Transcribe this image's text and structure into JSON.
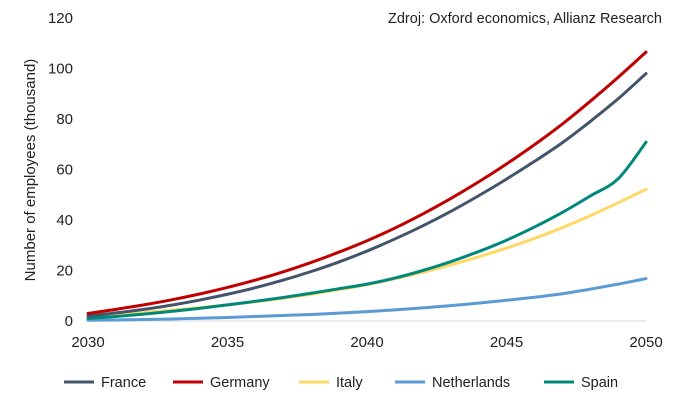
{
  "source_note": "Zdroj: Oxford economics, Allianz Research",
  "chart_data": {
    "type": "line",
    "title": "",
    "xlabel": "",
    "ylabel": "Number of employees (thousand)",
    "xlim": [
      2030,
      2050
    ],
    "ylim": [
      0,
      120
    ],
    "xticks": [
      2030,
      2035,
      2040,
      2045,
      2050
    ],
    "yticks": [
      0,
      20,
      40,
      60,
      80,
      100,
      120
    ],
    "grid": false,
    "legend_position": "bottom",
    "x": [
      2030,
      2031,
      2032,
      2033,
      2034,
      2035,
      2036,
      2037,
      2038,
      2039,
      2040,
      2041,
      2042,
      2043,
      2044,
      2045,
      2046,
      2047,
      2048,
      2049,
      2050
    ],
    "series": [
      {
        "name": "France",
        "color": "#44546A",
        "values": [
          2.0,
          3.2,
          4.6,
          6.3,
          8.3,
          10.6,
          13.2,
          16.2,
          19.6,
          23.4,
          27.7,
          32.5,
          37.7,
          43.4,
          49.6,
          56.2,
          63.2,
          70.6,
          79.0,
          88.0,
          98.0
        ]
      },
      {
        "name": "Germany",
        "color": "#C00000",
        "values": [
          3.0,
          4.6,
          6.4,
          8.4,
          10.7,
          13.3,
          16.2,
          19.5,
          23.2,
          27.3,
          31.8,
          36.8,
          42.4,
          48.5,
          55.1,
          62.2,
          69.8,
          78.0,
          87.0,
          96.5,
          106.5
        ]
      },
      {
        "name": "Italy",
        "color": "#FFD966",
        "values": [
          1.5,
          2.4,
          3.3,
          4.3,
          5.3,
          6.4,
          7.6,
          9.0,
          10.6,
          12.4,
          14.4,
          16.7,
          19.3,
          22.2,
          25.4,
          28.9,
          32.7,
          37.0,
          41.7,
          46.8,
          52.2
        ]
      },
      {
        "name": "Netherlands",
        "color": "#5B9BD5",
        "values": [
          0.3,
          0.4,
          0.6,
          0.8,
          1.1,
          1.4,
          1.8,
          2.2,
          2.6,
          3.1,
          3.7,
          4.4,
          5.2,
          6.1,
          7.1,
          8.2,
          9.4,
          10.8,
          12.6,
          14.6,
          16.8
        ]
      },
      {
        "name": "Spain",
        "color": "#00897B",
        "values": [
          1.0,
          1.8,
          2.7,
          3.8,
          5.0,
          6.4,
          7.8,
          9.3,
          11.0,
          12.8,
          14.6,
          17.0,
          20.0,
          23.5,
          27.5,
          32.0,
          37.2,
          43.0,
          49.5,
          56.3,
          70.8
        ]
      }
    ]
  }
}
